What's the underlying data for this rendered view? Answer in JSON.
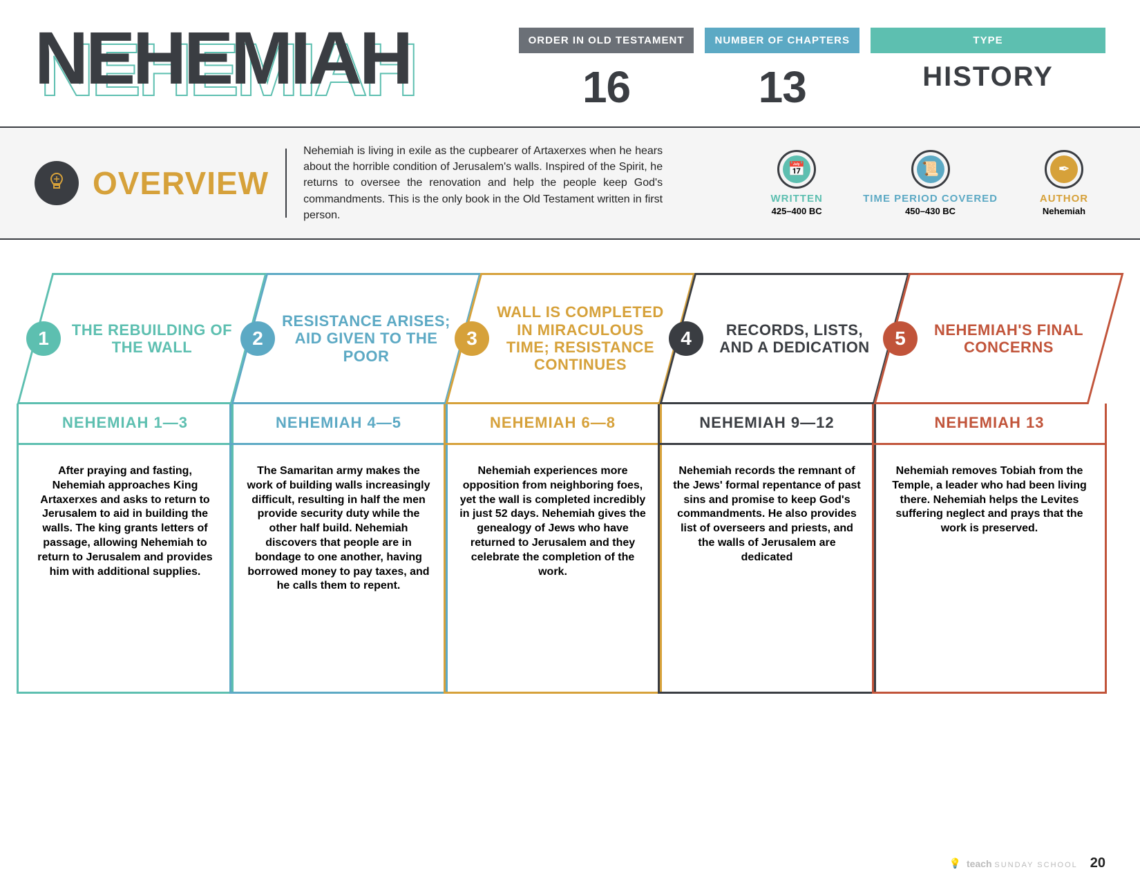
{
  "title": "NEHEMIAH",
  "colors": {
    "dark": "#3a3d42",
    "teal": "#5dbfb0",
    "blue": "#5ca9c4",
    "gold": "#d6a13a",
    "red": "#c1543a",
    "lightband": "#f5f5f5"
  },
  "stats": [
    {
      "label": "ORDER IN OLD TESTAMENT",
      "value": "16",
      "color": "#6b7077"
    },
    {
      "label": "NUMBER OF CHAPTERS",
      "value": "13",
      "color": "#5ca9c4"
    },
    {
      "label": "TYPE",
      "value": "HISTORY",
      "color": "#5dbfb0",
      "wide": true
    }
  ],
  "overview": {
    "heading": "OVERVIEW",
    "text": "Nehemiah is living in exile as the cupbearer of Artaxerxes when he hears about the horrible condition of Jerusalem's walls. Inspired of the Spirit, he returns to oversee the renovation and help the people keep God's commandments. This is the only book in the Old Testament written in first person.",
    "meta": [
      {
        "label": "WRITTEN",
        "value": "425–400 BC",
        "color": "#5dbfb0",
        "label_color": "#5dbfb0",
        "glyph": "📅"
      },
      {
        "label": "TIME PERIOD COVERED",
        "value": "450–430 BC",
        "color": "#5ca9c4",
        "label_color": "#5ca9c4",
        "glyph": "📜"
      },
      {
        "label": "AUTHOR",
        "value": "Nehemiah",
        "color": "#d6a13a",
        "label_color": "#d6a13a",
        "glyph": "✒"
      }
    ]
  },
  "sections": [
    {
      "num": "1",
      "color": "#5dbfb0",
      "title": "THE REBUILDING OF THE WALL",
      "ref": "NEHEMIAH 1—3",
      "desc": "After praying and fasting, Nehemiah approaches King Artaxerxes and asks to return to Jerusalem to aid in building the walls. The king grants letters of passage, allowing Nehemiah to return to Jerusalem and provides him with additional supplies."
    },
    {
      "num": "2",
      "color": "#5ca9c4",
      "title": "RESISTANCE ARISES; AID GIVEN TO THE POOR",
      "ref": "NEHEMIAH 4—5",
      "desc": "The Samaritan army makes the work of building walls increasingly difficult, resulting in half the men provide security duty while the other half build. Nehemiah discovers that people are in bondage to one another, having borrowed money to pay taxes, and he calls them to repent."
    },
    {
      "num": "3",
      "color": "#d6a13a",
      "title": "WALL IS COMPLETED IN MIRACULOUS TIME; RESISTANCE CONTINUES",
      "ref": "NEHEMIAH 6—8",
      "desc": "Nehemiah experiences more opposition from neighboring foes, yet the wall is completed incredibly in just 52 days. Nehemiah gives the genealogy of Jews who have returned to Jerusalem and they celebrate the completion of the work."
    },
    {
      "num": "4",
      "color": "#3a3d42",
      "title": "RECORDS, LISTS, AND A DEDICATION",
      "ref": "NEHEMIAH 9—12",
      "desc": "Nehemiah records the remnant of the Jews' formal repentance of past sins and promise to keep God's commandments. He also provides list of overseers and priests, and the walls of Jerusalem are dedicated"
    },
    {
      "num": "5",
      "color": "#c1543a",
      "title": "NEHEMIAH'S FINAL CONCERNS",
      "ref": "NEHEMIAH 13",
      "desc": "Nehemiah removes Tobiah from the Temple, a leader who had been living there. Nehemiah helps the Levites suffering neglect and prays that the work is preserved."
    }
  ],
  "footer": {
    "brand_bold": "teach",
    "brand_light": "SUNDAY SCHOOL",
    "page": "20"
  }
}
